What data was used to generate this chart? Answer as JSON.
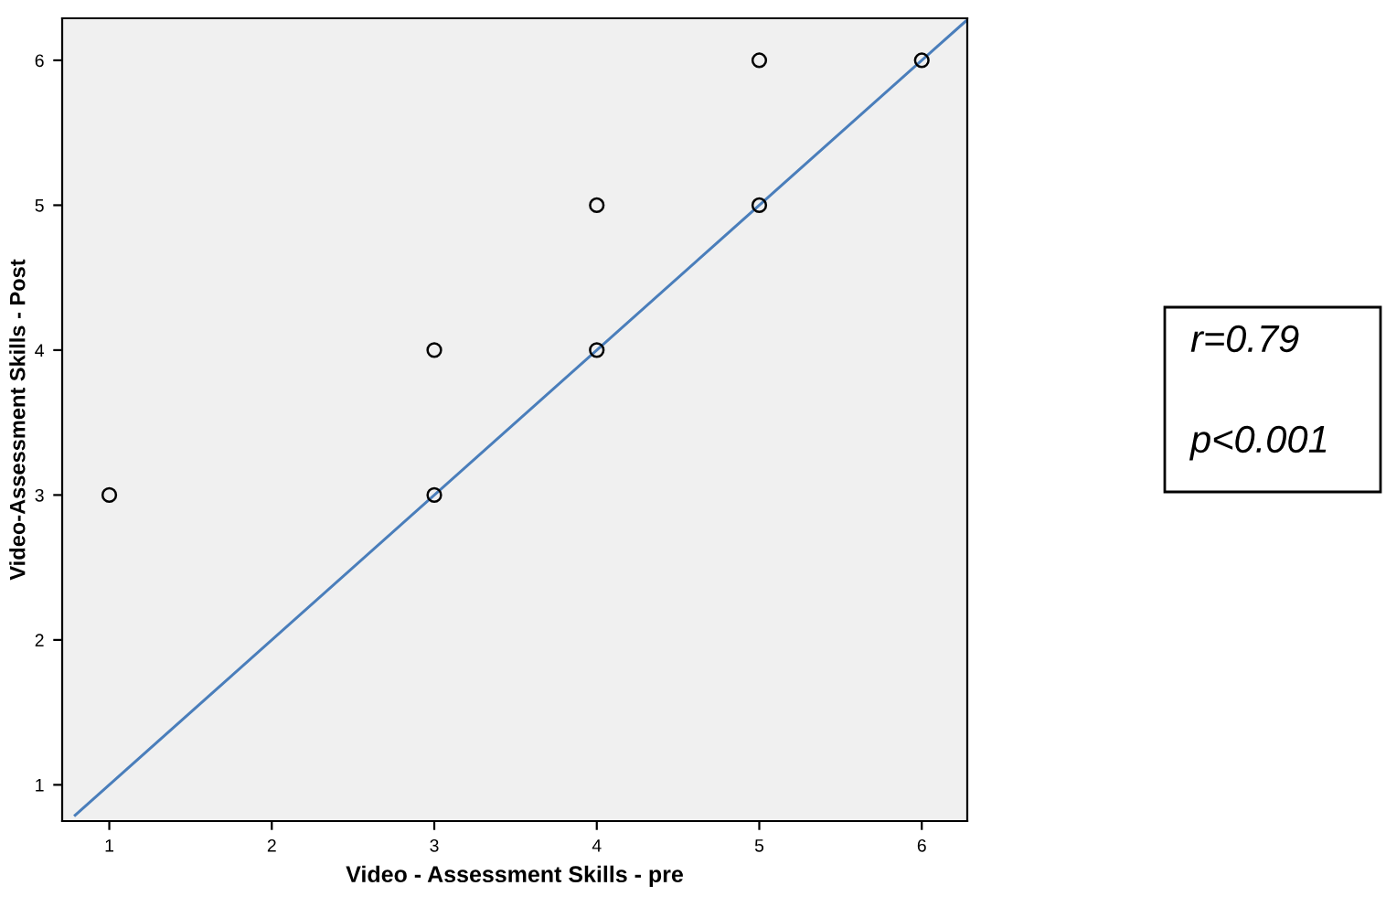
{
  "chart_data": {
    "type": "scatter",
    "xlabel": "Video - Assessment Skills - pre",
    "ylabel": "Video-Assessment Skills - Post",
    "series": [
      {
        "color": "#000000",
        "x": [
          1,
          3,
          3,
          4,
          4,
          5,
          5,
          6
        ],
        "values": [
          3,
          4,
          3,
          5,
          4,
          6,
          5,
          6
        ],
        "marker": "circle"
      },
      {
        "type": "line",
        "color": "#4a7ebb",
        "x": [
          0.79,
          6.27
        ],
        "values": [
          0.79,
          6.27
        ],
        "marker": "none"
      }
    ],
    "xlim": [
      0.71,
      6.28
    ],
    "ylim": [
      0.75,
      6.29
    ],
    "xticks": [
      1,
      2,
      3,
      4,
      5,
      6
    ],
    "yticks": [
      1,
      2,
      3,
      4,
      5,
      6
    ],
    "grid": false,
    "legend": false,
    "annotations": [
      "r=0.79",
      "p<0.001"
    ]
  }
}
